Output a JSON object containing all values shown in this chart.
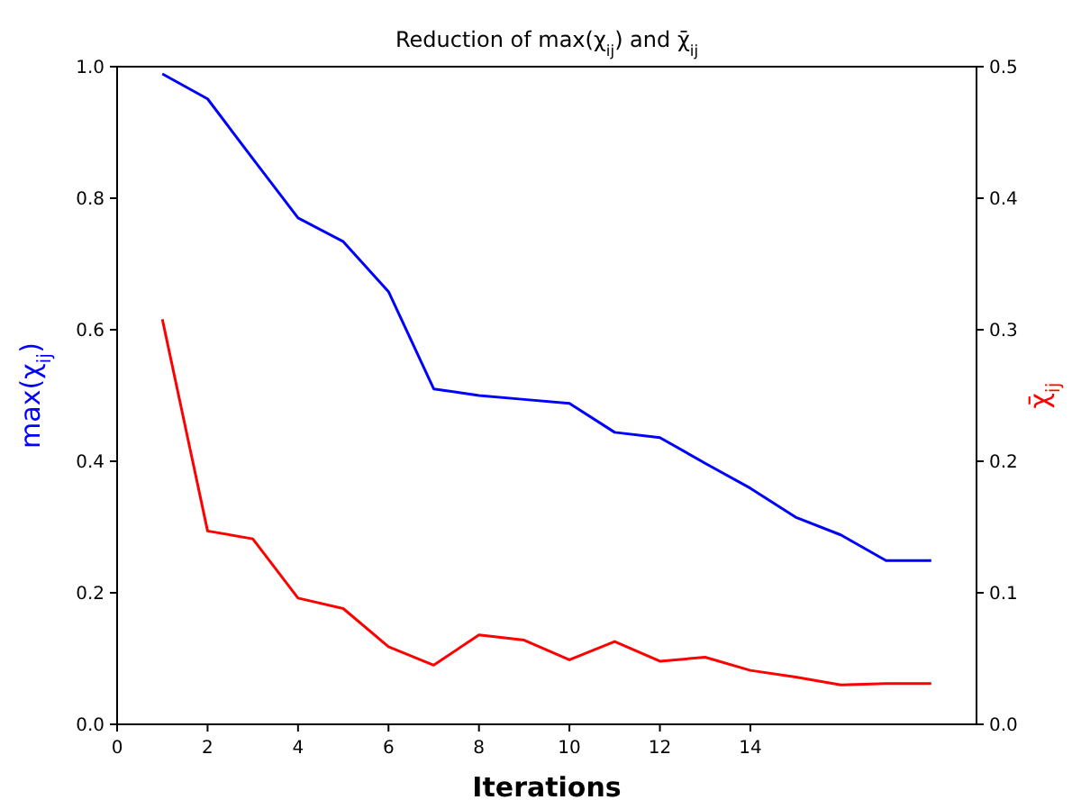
{
  "chart_data": {
    "type": "line",
    "title": "Reduction of max(χ$_{ij}$) and χ̄$_{ij}$",
    "xlabel": "Iterations",
    "ylabel": "max(χ$_{ij}$)",
    "y2label": "χ̄$_{ij}$",
    "x": [
      1,
      2,
      3,
      4,
      5,
      6,
      7,
      8,
      9,
      10,
      11,
      12,
      13,
      14,
      15,
      16,
      17,
      18
    ],
    "xlim": [
      0,
      19
    ],
    "xticks": [
      0,
      2,
      4,
      6,
      8,
      10,
      12,
      14
    ],
    "ylim": [
      0,
      1
    ],
    "yticks": [
      {
        "value": 0,
        "label": "0.0"
      },
      {
        "value": 0.2,
        "label": "0.2"
      },
      {
        "value": 0.4,
        "label": "0.4"
      },
      {
        "value": 0.6,
        "label": "0.6"
      },
      {
        "value": 0.8,
        "label": "0.8"
      },
      {
        "value": 1,
        "label": "1.0"
      }
    ],
    "y2lim": [
      0,
      0.5
    ],
    "y2ticks": [
      {
        "value": 0,
        "label": "0.0"
      },
      {
        "value": 0.1,
        "label": "0.1"
      },
      {
        "value": 0.2,
        "label": "0.2"
      },
      {
        "value": 0.3,
        "label": "0.3"
      },
      {
        "value": 0.4,
        "label": "0.4"
      },
      {
        "value": 0.5,
        "label": "0.5"
      }
    ],
    "grid": false,
    "series": [
      {
        "color": "#0000ff",
        "values": [
          0.989,
          0.951,
          0.86,
          0.77,
          0.734,
          0.658,
          0.51,
          0.5,
          0.494,
          0.488,
          0.444,
          0.436,
          0.397,
          0.359,
          0.315,
          0.288,
          0.249,
          0.249
        ]
      },
      {
        "color": "#ff0000",
        "axis": "y2",
        "values": [
          0.308,
          0.147,
          0.141,
          0.096,
          0.088,
          0.059,
          0.045,
          0.068,
          0.064,
          0.049,
          0.063,
          0.048,
          0.051,
          0.041,
          0.036,
          0.03,
          0.031,
          0.031
        ]
      }
    ]
  }
}
